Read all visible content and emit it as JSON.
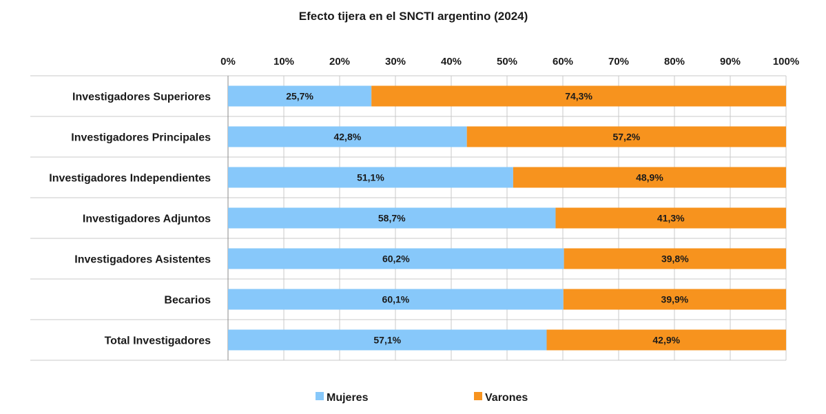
{
  "chart_data": {
    "type": "bar",
    "orientation": "horizontal",
    "stacked": "percent",
    "title": "Efecto tijera en el SNCTI argentino (2024)",
    "xlabel": "",
    "ylabel": "",
    "xlim": [
      0,
      100
    ],
    "x_ticks": [
      "0%",
      "10%",
      "20%",
      "30%",
      "40%",
      "50%",
      "60%",
      "70%",
      "80%",
      "90%",
      "100%"
    ],
    "categories": [
      "Investigadores Superiores",
      "Investigadores Principales",
      "Investigadores Independientes",
      "Investigadores Adjuntos",
      "Investigadores Asistentes",
      "Becarios",
      "Total Investigadores"
    ],
    "series": [
      {
        "name": "Mujeres",
        "color": "#87c8fa",
        "values": [
          25.7,
          42.8,
          51.1,
          58.7,
          60.2,
          60.1,
          57.1
        ],
        "labels": [
          "25,7%",
          "42,8%",
          "51,1%",
          "58,7%",
          "60,2%",
          "60,1%",
          "57,1%"
        ]
      },
      {
        "name": "Varones",
        "color": "#f7931e",
        "values": [
          74.3,
          57.2,
          48.9,
          41.3,
          39.8,
          39.9,
          42.9
        ],
        "labels": [
          "74,3%",
          "57,2%",
          "48,9%",
          "41,3%",
          "39,8%",
          "39,9%",
          "42,9%"
        ]
      }
    ],
    "legend": "bottom",
    "grid": true
  }
}
